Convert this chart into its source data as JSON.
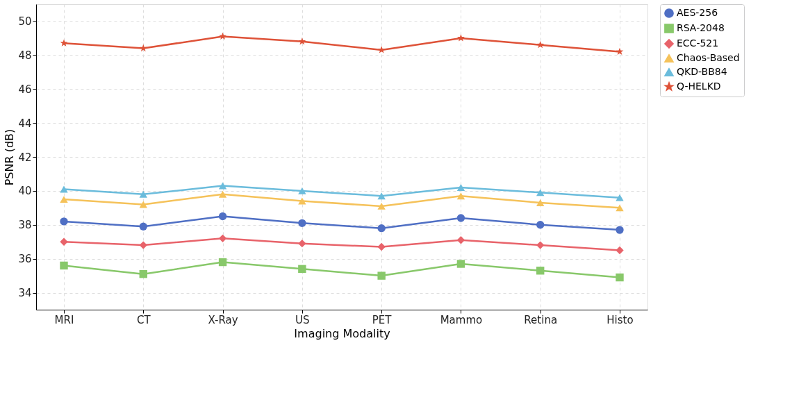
{
  "chart_data": {
    "type": "line",
    "xlabel": "Imaging Modality",
    "ylabel": "PSNR (dB)",
    "categories": [
      "MRI",
      "CT",
      "X-Ray",
      "US",
      "PET",
      "Mammo",
      "Retina",
      "Histo"
    ],
    "series": [
      {
        "name": "AES-256",
        "color": "#4f6fc4",
        "marker": "circle",
        "values": [
          38.2,
          37.9,
          38.5,
          38.1,
          37.8,
          38.4,
          38.0,
          37.7
        ]
      },
      {
        "name": "RSA-2048",
        "color": "#88c86a",
        "marker": "square",
        "values": [
          35.6,
          35.1,
          35.8,
          35.4,
          35.0,
          35.7,
          35.3,
          34.9
        ]
      },
      {
        "name": "ECC-521",
        "color": "#e8636a",
        "marker": "diamond",
        "values": [
          37.0,
          36.8,
          37.2,
          36.9,
          36.7,
          37.1,
          36.8,
          36.5
        ]
      },
      {
        "name": "Chaos-Based",
        "color": "#f5c25a",
        "marker": "triangle",
        "values": [
          39.5,
          39.2,
          39.8,
          39.4,
          39.1,
          39.7,
          39.3,
          39.0
        ]
      },
      {
        "name": "QKD-BB84",
        "color": "#6bbcdc",
        "marker": "triangle",
        "values": [
          40.1,
          39.8,
          40.3,
          40.0,
          39.7,
          40.2,
          39.9,
          39.6
        ]
      },
      {
        "name": "Q-HELKD",
        "color": "#de5238",
        "marker": "star",
        "values": [
          48.7,
          48.4,
          49.1,
          48.8,
          48.3,
          49.0,
          48.6,
          48.2
        ]
      }
    ],
    "ylim": [
      33,
      51
    ],
    "yticks": [
      34,
      36,
      38,
      40,
      42,
      44,
      46,
      48,
      50
    ],
    "grid": true,
    "legend": "right",
    "line_style": "solid"
  }
}
